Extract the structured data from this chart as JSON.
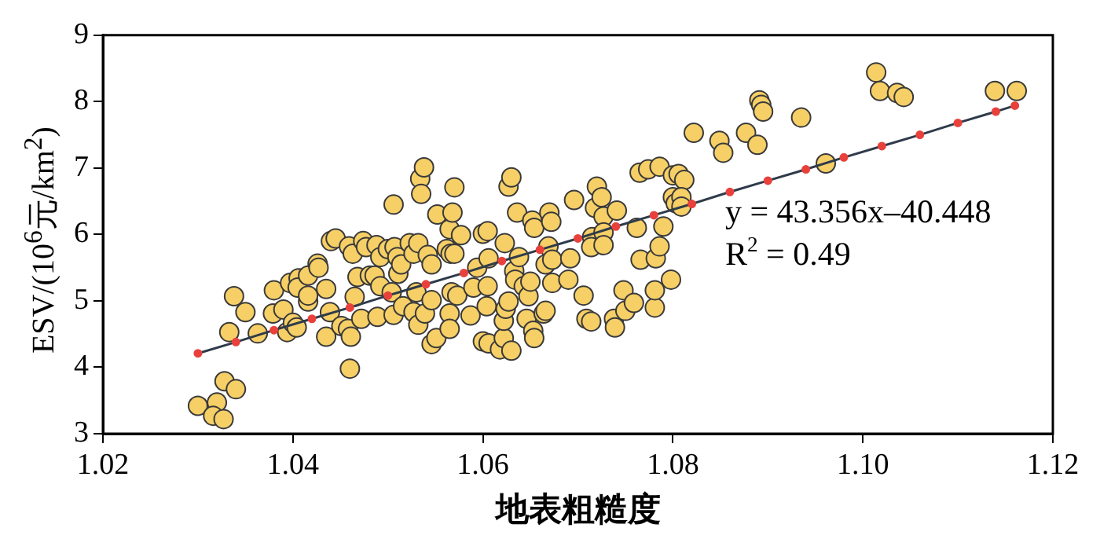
{
  "chart_data": {
    "type": "scatter",
    "xlabel": "地表粗糙度",
    "ylabel": "ESV/(10$^{6}$元/km$^{2}$)",
    "xlim": [
      1.02,
      1.12
    ],
    "xticks": [
      1.02,
      1.04,
      1.06,
      1.08,
      {
        "value": 1.1,
        "label": "1.10"
      },
      1.12
    ],
    "ylim": [
      3,
      9
    ],
    "yticks": [
      3,
      4,
      5,
      6,
      7,
      8,
      9
    ],
    "grid": false,
    "legend": false,
    "annotations": [
      "y = 43.356x–40.448",
      "R$^{2}$ = 0.49"
    ],
    "series": [
      {
        "color": "#f6cf66",
        "marker": "circle",
        "x": [
          1.03,
          1.032,
          1.0316,
          1.0327,
          1.0328,
          1.034,
          1.0333,
          1.0338,
          1.035,
          1.0363,
          1.038,
          1.0379,
          1.039,
          1.0394,
          1.04,
          1.0404,
          1.0397,
          1.0406,
          1.0405,
          1.0416,
          1.0416,
          1.0416,
          1.0426,
          1.0427,
          1.0435,
          1.0435,
          1.0439,
          1.044,
          1.0445,
          1.0451,
          1.0458,
          1.046,
          1.0461,
          1.0459,
          1.0463,
          1.0468,
          1.0465,
          1.0472,
          1.0474,
          1.0477,
          1.0481,
          1.0486,
          1.0488,
          1.0492,
          1.0492,
          1.0489,
          1.05,
          1.0504,
          1.0506,
          1.0507,
          1.051,
          1.0511,
          1.0514,
          1.0506,
          1.0516,
          1.0523,
          1.0527,
          1.0527,
          1.053,
          1.0532,
          1.0532,
          1.0534,
          1.0535,
          1.0538,
          1.0539,
          1.0542,
          1.0546,
          1.0546,
          1.0546,
          1.0551,
          1.0552,
          1.0562,
          1.0565,
          1.0566,
          1.0568,
          1.057,
          1.057,
          1.0567,
          1.0565,
          1.0565,
          1.0573,
          1.0577,
          1.0587,
          1.059,
          1.0594,
          1.06,
          1.0605,
          1.06,
          1.0606,
          1.0604,
          1.0605,
          1.0606,
          1.0618,
          1.0622,
          1.0622,
          1.0623,
          1.0624,
          1.0627,
          1.0627,
          1.063,
          1.063,
          1.0633,
          1.0634,
          1.0636,
          1.0638,
          1.0643,
          1.0648,
          1.0646,
          1.065,
          1.0653,
          1.0654,
          1.0652,
          1.0654,
          1.0664,
          1.0666,
          1.0666,
          1.0669,
          1.067,
          1.0672,
          1.0673,
          1.0673,
          1.069,
          1.0692,
          1.0696,
          1.0706,
          1.0709,
          1.0714,
          1.0715,
          1.0714,
          1.0718,
          1.072,
          1.0725,
          1.0727,
          1.0727,
          1.0727,
          1.0738,
          1.0739,
          1.0741,
          1.0748,
          1.075,
          1.0759,
          1.0762,
          1.0765,
          1.0766,
          1.0774,
          1.0781,
          1.0781,
          1.0782,
          1.0786,
          1.0786,
          1.079,
          1.0798,
          1.08,
          1.0806,
          1.0812,
          1.08,
          1.0803,
          1.0809,
          1.0809,
          1.0822,
          1.0849,
          1.0853,
          1.0877,
          1.0889,
          1.0891,
          1.0893,
          1.0895,
          1.0935,
          1.0961,
          1.1014,
          1.1018,
          1.1036,
          1.1043,
          1.1139,
          1.1162
        ],
        "values": [
          3.42,
          3.47,
          3.27,
          3.22,
          3.79,
          3.67,
          4.53,
          5.07,
          4.83,
          4.51,
          5.16,
          4.81,
          4.87,
          4.53,
          4.67,
          4.6,
          5.27,
          5.34,
          5.2,
          5.38,
          4.99,
          5.08,
          5.56,
          5.5,
          5.18,
          4.46,
          4.83,
          5.9,
          5.94,
          4.62,
          4.58,
          3.98,
          4.46,
          5.82,
          5.71,
          5.36,
          5.06,
          4.73,
          5.9,
          5.81,
          5.38,
          5.38,
          5.84,
          5.66,
          5.22,
          4.76,
          5.78,
          5.13,
          6.45,
          5.81,
          5.66,
          5.41,
          5.55,
          4.79,
          4.92,
          5.87,
          5.71,
          4.83,
          5.13,
          4.64,
          5.87,
          6.84,
          6.61,
          7.01,
          4.81,
          5.69,
          5.55,
          5.01,
          4.35,
          4.44,
          6.3,
          5.78,
          6.08,
          5.71,
          6.33,
          6.71,
          5.71,
          5.13,
          4.81,
          4.58,
          5.08,
          5.99,
          4.78,
          5.2,
          5.5,
          6.01,
          6.05,
          4.39,
          4.36,
          4.92,
          5.22,
          5.64,
          4.27,
          4.44,
          4.7,
          5.87,
          4.88,
          4.99,
          6.72,
          6.86,
          4.25,
          5.45,
          5.32,
          6.33,
          5.66,
          5.22,
          5.07,
          4.73,
          5.29,
          4.55,
          4.44,
          6.21,
          6.1,
          4.81,
          4.85,
          5.55,
          5.82,
          6.33,
          6.19,
          5.62,
          5.27,
          5.32,
          5.64,
          6.52,
          5.08,
          4.73,
          4.69,
          5.96,
          5.81,
          6.4,
          6.72,
          6.56,
          6.27,
          6.03,
          5.84,
          4.73,
          4.6,
          6.36,
          5.16,
          4.85,
          4.97,
          6.1,
          6.93,
          5.62,
          6.98,
          4.9,
          5.16,
          5.64,
          7.02,
          5.82,
          6.12,
          5.32,
          6.89,
          6.91,
          6.82,
          6.56,
          6.47,
          6.56,
          6.42,
          7.53,
          7.41,
          7.23,
          7.53,
          7.35,
          8.02,
          7.95,
          7.85,
          7.76,
          7.07,
          8.44,
          8.16,
          8.13,
          8.07,
          8.16,
          8.16
        ]
      },
      {
        "type": "line",
        "color": "#e8413c",
        "marker": "circle",
        "line_style": "solid",
        "x": [
          1.03,
          1.034,
          1.038,
          1.042,
          1.046,
          1.05,
          1.054,
          1.058,
          1.062,
          1.066,
          1.07,
          1.074,
          1.078,
          1.082,
          1.086,
          1.09,
          1.094,
          1.098,
          1.102,
          1.106,
          1.11,
          1.114,
          1.116
        ],
        "values": [
          4.21,
          4.38,
          4.56,
          4.73,
          4.9,
          5.08,
          5.25,
          5.42,
          5.6,
          5.77,
          5.94,
          6.12,
          6.29,
          6.46,
          6.64,
          6.81,
          6.98,
          7.16,
          7.33,
          7.5,
          7.68,
          7.85,
          7.94
        ]
      }
    ]
  }
}
